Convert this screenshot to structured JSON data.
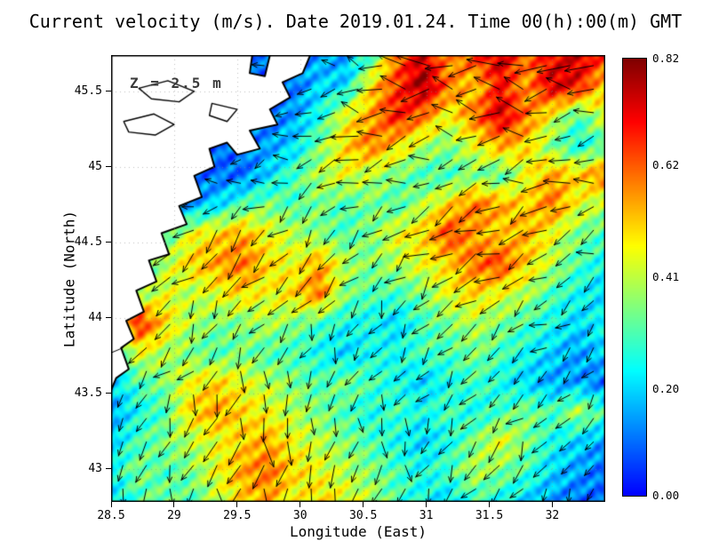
{
  "chart_data": {
    "type": "heatmap",
    "title": "Current velocity (m/s). Date 2019.01.24. Time 00(h):00(m) GMT",
    "annotation": "Z = 2.5 m",
    "date": "2019.01.24",
    "time": "00(h):00(m) GMT",
    "depth_m": 2.5,
    "xlabel": "Longitude (East)",
    "ylabel": "Latitude (North)",
    "x_range": [
      28.5,
      32.42
    ],
    "y_range": [
      42.78,
      45.74
    ],
    "x_ticks": [
      28.5,
      29,
      29.5,
      30,
      30.5,
      31,
      31.5,
      32
    ],
    "y_ticks": [
      43,
      43.5,
      44,
      44.5,
      45,
      45.5
    ],
    "grid_on": true,
    "colorbar": {
      "min": 0.0,
      "max": 0.82,
      "ticks": [
        {
          "label": "0.82",
          "value": 0.82
        },
        {
          "label": "0.62",
          "value": 0.62
        },
        {
          "label": "0.41",
          "value": 0.41
        },
        {
          "label": "0.20",
          "value": 0.2
        },
        {
          "label": "0.00",
          "value": 0.0
        }
      ]
    },
    "speed_grid": {
      "units": "m/s",
      "vmax": 0.82,
      "values": [
        [
          0.1,
          0.1,
          0.1,
          0.1,
          0.1,
          0.1,
          0.1,
          0.1,
          0.15,
          0.15,
          0.3,
          0.6,
          0.75,
          0.55,
          0.65,
          0.75,
          0.6,
          0.7,
          0.75,
          0.65
        ],
        [
          0.1,
          0.1,
          0.1,
          0.1,
          0.1,
          0.1,
          0.1,
          0.1,
          0.2,
          0.2,
          0.5,
          0.65,
          0.8,
          0.6,
          0.5,
          0.7,
          0.55,
          0.75,
          0.7,
          0.5
        ],
        [
          0.1,
          0.1,
          0.1,
          0.1,
          0.1,
          0.1,
          0.1,
          0.15,
          0.25,
          0.45,
          0.55,
          0.7,
          0.6,
          0.45,
          0.6,
          0.75,
          0.6,
          0.45,
          0.3,
          0.45
        ],
        [
          0.1,
          0.1,
          0.1,
          0.1,
          0.1,
          0.1,
          0.15,
          0.2,
          0.35,
          0.5,
          0.6,
          0.5,
          0.4,
          0.35,
          0.45,
          0.55,
          0.5,
          0.35,
          0.25,
          0.3
        ],
        [
          0.1,
          0.1,
          0.1,
          0.1,
          0.1,
          0.1,
          0.2,
          0.3,
          0.4,
          0.45,
          0.4,
          0.35,
          0.3,
          0.3,
          0.35,
          0.3,
          0.45,
          0.55,
          0.5,
          0.6
        ],
        [
          0.1,
          0.1,
          0.1,
          0.15,
          0.2,
          0.3,
          0.35,
          0.3,
          0.35,
          0.3,
          0.35,
          0.3,
          0.4,
          0.5,
          0.6,
          0.55,
          0.5,
          0.6,
          0.45,
          0.4
        ],
        [
          0.1,
          0.1,
          0.3,
          0.45,
          0.5,
          0.55,
          0.45,
          0.4,
          0.35,
          0.3,
          0.35,
          0.45,
          0.5,
          0.65,
          0.55,
          0.5,
          0.55,
          0.45,
          0.35,
          0.3
        ],
        [
          0.1,
          0.25,
          0.4,
          0.5,
          0.55,
          0.6,
          0.5,
          0.45,
          0.55,
          0.4,
          0.35,
          0.4,
          0.45,
          0.5,
          0.6,
          0.65,
          0.5,
          0.4,
          0.3,
          0.25
        ],
        [
          0.1,
          0.35,
          0.45,
          0.4,
          0.45,
          0.5,
          0.45,
          0.5,
          0.6,
          0.35,
          0.3,
          0.3,
          0.35,
          0.45,
          0.5,
          0.45,
          0.4,
          0.3,
          0.25,
          0.2
        ],
        [
          0.3,
          0.7,
          0.5,
          0.4,
          0.35,
          0.35,
          0.4,
          0.35,
          0.3,
          0.25,
          0.25,
          0.2,
          0.3,
          0.35,
          0.4,
          0.35,
          0.3,
          0.25,
          0.2,
          0.25
        ],
        [
          0.25,
          0.45,
          0.4,
          0.35,
          0.3,
          0.35,
          0.3,
          0.3,
          0.25,
          0.2,
          0.25,
          0.25,
          0.3,
          0.3,
          0.35,
          0.3,
          0.25,
          0.2,
          0.15,
          0.2
        ],
        [
          0.2,
          0.3,
          0.35,
          0.45,
          0.5,
          0.45,
          0.4,
          0.35,
          0.3,
          0.35,
          0.3,
          0.25,
          0.2,
          0.25,
          0.3,
          0.25,
          0.2,
          0.15,
          0.15,
          0.1
        ],
        [
          0.15,
          0.25,
          0.3,
          0.5,
          0.55,
          0.5,
          0.45,
          0.4,
          0.35,
          0.3,
          0.25,
          0.3,
          0.25,
          0.3,
          0.25,
          0.3,
          0.35,
          0.3,
          0.4,
          0.3
        ],
        [
          0.2,
          0.3,
          0.35,
          0.4,
          0.45,
          0.5,
          0.55,
          0.45,
          0.4,
          0.35,
          0.3,
          0.25,
          0.2,
          0.25,
          0.35,
          0.45,
          0.35,
          0.25,
          0.2,
          0.15
        ],
        [
          0.25,
          0.35,
          0.3,
          0.35,
          0.45,
          0.55,
          0.6,
          0.5,
          0.45,
          0.4,
          0.35,
          0.3,
          0.25,
          0.3,
          0.4,
          0.35,
          0.3,
          0.2,
          0.15,
          0.1
        ],
        [
          0.2,
          0.3,
          0.35,
          0.3,
          0.4,
          0.5,
          0.55,
          0.45,
          0.5,
          0.45,
          0.4,
          0.3,
          0.25,
          0.2,
          0.3,
          0.25,
          0.2,
          0.15,
          0.1,
          0.1
        ]
      ]
    },
    "vector_grid": {
      "note": "arrow direction field, degrees (0=east, counter-clockwise)",
      "angles_deg": [
        [
          165,
          165,
          170,
          170,
          175,
          170,
          165,
          170,
          175,
          170
        ],
        [
          180,
          180,
          185,
          180,
          180,
          175,
          180,
          185,
          180,
          175
        ],
        [
          200,
          195,
          195,
          200,
          205,
          195,
          190,
          195,
          200,
          195
        ],
        [
          215,
          210,
          215,
          225,
          235,
          225,
          210,
          205,
          210,
          205
        ],
        [
          220,
          225,
          235,
          245,
          250,
          240,
          225,
          215,
          210,
          215
        ],
        [
          230,
          235,
          245,
          255,
          260,
          250,
          235,
          225,
          220,
          225
        ],
        [
          240,
          245,
          255,
          265,
          270,
          260,
          245,
          235,
          230,
          235
        ],
        [
          250,
          255,
          265,
          270,
          275,
          265,
          255,
          245,
          240,
          245
        ]
      ]
    },
    "coastline": [
      [
        28.5,
        45.74
      ],
      [
        29.62,
        45.74
      ],
      [
        29.6,
        45.62
      ],
      [
        29.72,
        45.6
      ],
      [
        29.76,
        45.74
      ],
      [
        30.08,
        45.74
      ],
      [
        30.02,
        45.62
      ],
      [
        29.86,
        45.56
      ],
      [
        29.92,
        45.46
      ],
      [
        29.76,
        45.38
      ],
      [
        29.82,
        45.28
      ],
      [
        29.6,
        45.24
      ],
      [
        29.68,
        45.12
      ],
      [
        29.5,
        45.08
      ],
      [
        29.42,
        45.16
      ],
      [
        29.28,
        45.12
      ],
      [
        29.32,
        45.0
      ],
      [
        29.16,
        44.94
      ],
      [
        29.22,
        44.8
      ],
      [
        29.04,
        44.74
      ],
      [
        29.1,
        44.62
      ],
      [
        28.9,
        44.56
      ],
      [
        28.96,
        44.42
      ],
      [
        28.8,
        44.38
      ],
      [
        28.86,
        44.24
      ],
      [
        28.7,
        44.18
      ],
      [
        28.76,
        44.04
      ],
      [
        28.62,
        43.98
      ],
      [
        28.68,
        43.86
      ],
      [
        28.58,
        43.8
      ],
      [
        28.64,
        43.66
      ],
      [
        28.54,
        43.6
      ],
      [
        28.5,
        43.52
      ]
    ],
    "lakes": [
      [
        [
          28.72,
          45.52
        ],
        [
          28.95,
          45.57
        ],
        [
          29.16,
          45.5
        ],
        [
          29.04,
          45.43
        ],
        [
          28.82,
          45.45
        ],
        [
          28.72,
          45.52
        ]
      ],
      [
        [
          28.6,
          45.3
        ],
        [
          28.84,
          45.35
        ],
        [
          29.0,
          45.28
        ],
        [
          28.85,
          45.21
        ],
        [
          28.64,
          45.23
        ],
        [
          28.6,
          45.3
        ]
      ],
      [
        [
          29.3,
          45.42
        ],
        [
          29.5,
          45.38
        ],
        [
          29.42,
          45.3
        ],
        [
          29.28,
          45.34
        ],
        [
          29.3,
          45.42
        ]
      ]
    ]
  }
}
